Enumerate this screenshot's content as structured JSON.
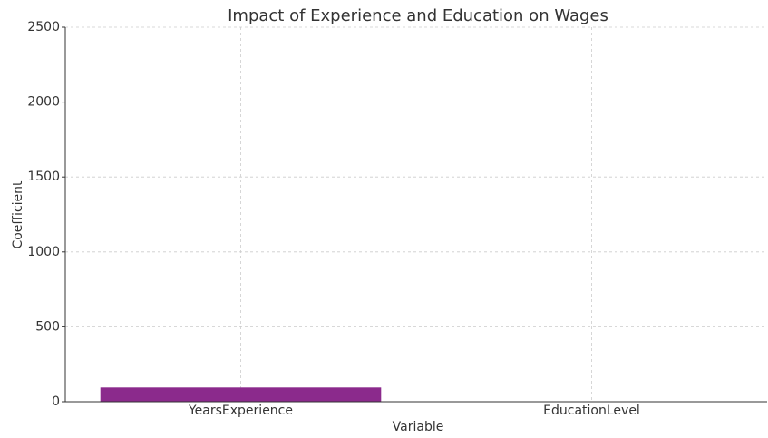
{
  "chart_data": {
    "type": "bar",
    "title": "Impact of Experience and Education on Wages",
    "x_label": "Variable",
    "y_label": "Coefficient",
    "categories": [
      "YearsExperience",
      "EducationLevel"
    ],
    "values": [
      95,
      0
    ],
    "color": "#8b2a8c",
    "ylim": [
      0,
      2500
    ],
    "yticks": [
      0,
      500,
      1000,
      1500,
      2000,
      2500
    ],
    "grid": true
  }
}
